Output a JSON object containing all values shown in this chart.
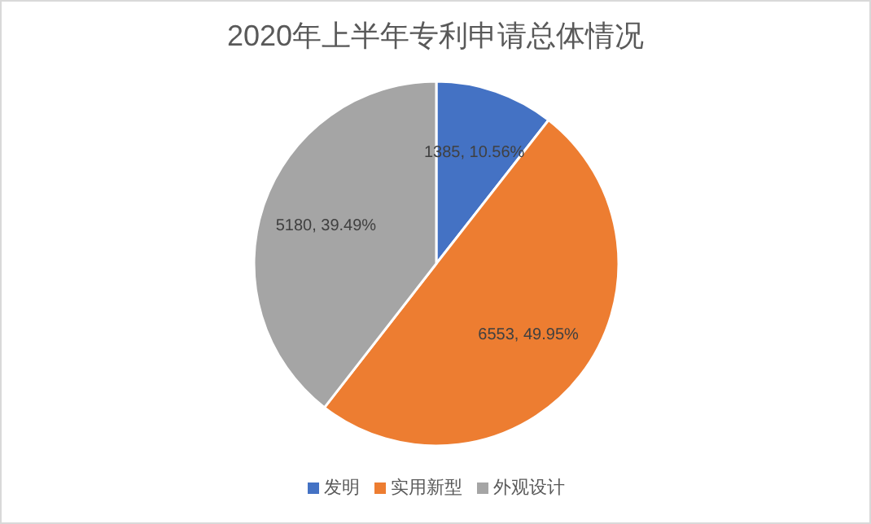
{
  "chart_data": {
    "type": "pie",
    "title": "2020年上半年专利申请总体情况",
    "categories": [
      "发明",
      "实用新型",
      "外观设计"
    ],
    "values": [
      1385,
      6553,
      5180
    ],
    "colors": [
      "#4472c4",
      "#ed7d31",
      "#a5a5a5"
    ],
    "value_labels": [
      "1385, 10.56%",
      "6553, 49.95%",
      "5180, 39.49%"
    ],
    "legend": "bottom"
  }
}
